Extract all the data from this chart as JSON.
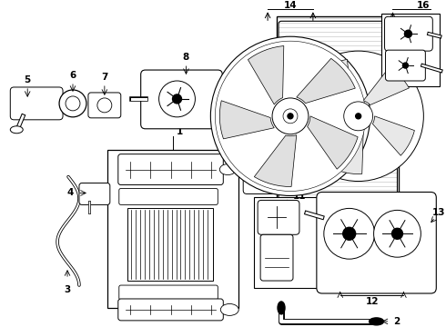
{
  "bg_color": "#ffffff",
  "line_color": "#000000",
  "figsize": [
    4.9,
    3.6
  ],
  "dpi": 100,
  "xlim": [
    0,
    490
  ],
  "ylim": [
    0,
    360
  ]
}
